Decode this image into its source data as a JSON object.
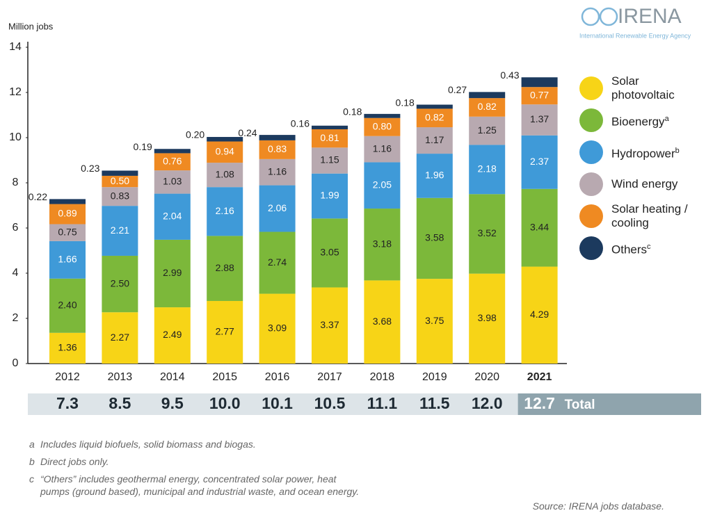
{
  "chart_data": {
    "type": "stacked-bar",
    "y_label": "Million jobs",
    "categories": [
      "2012",
      "2013",
      "2014",
      "2015",
      "2016",
      "2017",
      "2018",
      "2019",
      "2020",
      "2021"
    ],
    "ylim": [
      0,
      14
    ],
    "yticks": [
      0,
      2,
      4,
      6,
      8,
      10,
      12,
      14
    ],
    "grid": false,
    "series": [
      {
        "name": "Solar photovoltaic",
        "color": "#f7d417",
        "label_color": "#222222",
        "values": [
          1.36,
          2.27,
          2.49,
          2.77,
          3.09,
          3.37,
          3.68,
          3.75,
          3.98,
          4.29
        ],
        "value_labels": [
          "1.36",
          "2.27",
          "2.49",
          "2.77",
          "3.09",
          "3.37",
          "3.68",
          "3.75",
          "3.98",
          "4.29"
        ]
      },
      {
        "name": "Bioenergy",
        "note": "a",
        "color": "#7cb83a",
        "label_color": "#222222",
        "values": [
          2.4,
          2.5,
          2.99,
          2.88,
          2.74,
          3.05,
          3.18,
          3.58,
          3.52,
          3.44
        ],
        "value_labels": [
          "2.40",
          "2.50",
          "2.99",
          "2.88",
          "2.74",
          "3.05",
          "3.18",
          "3.58",
          "3.52",
          "3.44"
        ]
      },
      {
        "name": "Hydropower",
        "note": "b",
        "color": "#3f9ad8",
        "label_color": "#ffffff",
        "values": [
          1.66,
          2.21,
          2.04,
          2.16,
          2.06,
          1.99,
          2.05,
          1.96,
          2.18,
          2.37
        ],
        "value_labels": [
          "1.66",
          "2.21",
          "2.04",
          "2.16",
          "2.06",
          "1.99",
          "2.05",
          "1.96",
          "2.18",
          "2.37"
        ]
      },
      {
        "name": "Wind energy",
        "color": "#b8a9b0",
        "label_color": "#222222",
        "values": [
          0.75,
          0.83,
          1.03,
          1.08,
          1.16,
          1.15,
          1.16,
          1.17,
          1.25,
          1.37
        ],
        "value_labels": [
          "0.75",
          "0.83",
          "1.03",
          "1.08",
          "1.16",
          "1.15",
          "1.16",
          "1.17",
          "1.25",
          "1.37"
        ]
      },
      {
        "name": "Solar heating / cooling",
        "color": "#ef8a22",
        "label_color": "#ffffff",
        "values": [
          0.89,
          0.5,
          0.76,
          0.94,
          0.83,
          0.81,
          0.8,
          0.82,
          0.82,
          0.77
        ],
        "value_labels": [
          "0.89",
          "0.50",
          "0.76",
          "0.94",
          "0.83",
          "0.81",
          "0.80",
          "0.82",
          "0.82",
          "0.77"
        ]
      },
      {
        "name": "Others",
        "note": "c",
        "color": "#1c3a5e",
        "label_color": "#222222",
        "values": [
          0.22,
          0.23,
          0.19,
          0.2,
          0.24,
          0.16,
          0.18,
          0.18,
          0.27,
          0.43
        ],
        "value_labels": [
          "0.22",
          "0.23",
          "0.19",
          "0.20",
          "0.24",
          "0.16",
          "0.18",
          "0.18",
          "0.27",
          "0.43"
        ]
      }
    ],
    "totals": {
      "label": "Total",
      "values": [
        7.3,
        8.5,
        9.5,
        10.0,
        10.1,
        10.5,
        11.1,
        11.5,
        12.0,
        12.7
      ],
      "value_labels": [
        "7.3",
        "8.5",
        "9.5",
        "10.0",
        "10.1",
        "10.5",
        "11.1",
        "11.5",
        "12.0",
        "12.7"
      ]
    },
    "notes": [
      {
        "marker": "a",
        "text": "Includes liquid biofuels, solid biomass and biogas."
      },
      {
        "marker": "b",
        "text": "Direct jobs only."
      },
      {
        "marker": "c",
        "text": "“Others” includes geothermal energy, concentrated solar power, heat pumps (ground based), municipal and industrial waste, and ocean energy."
      }
    ],
    "source": "Source: IRENA jobs database.",
    "logo": {
      "name": "IRENA",
      "subtitle": "International Renewable Energy Agency"
    }
  }
}
